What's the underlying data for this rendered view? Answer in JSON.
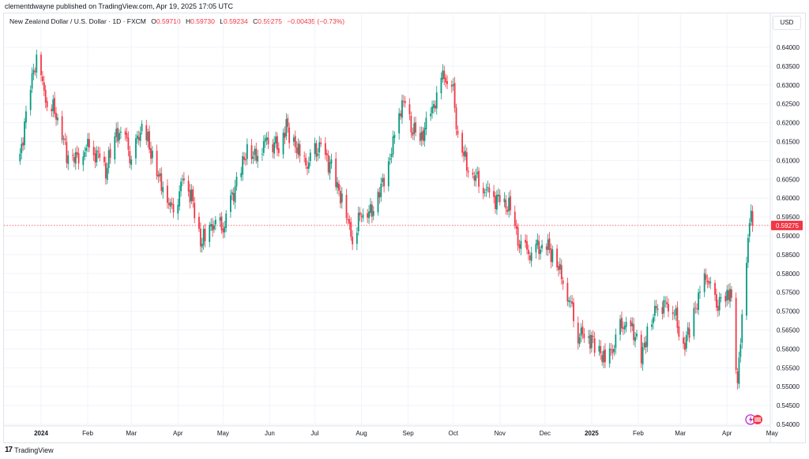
{
  "header": {
    "published": "clementdwayne published on TradingView.com, Apr 19, 2025 17:05 UTC"
  },
  "legend": {
    "symbol": "New Zealand Dollar / U.S. Dollar · 1D · FXCM",
    "o_key": "O",
    "o_val": "0.59710",
    "h_key": "H",
    "h_val": "0.59730",
    "l_key": "L",
    "l_val": "0.59234",
    "c_key": "C",
    "c_val": "0.59275",
    "change": "−0.00435 (−0.73%)"
  },
  "currency_label": "USD",
  "footer": {
    "logo": "17",
    "brand": "TradingView"
  },
  "colors": {
    "up": "#089981",
    "down": "#f23645",
    "grid": "#f0f3fa",
    "last_price_bg": "#f23645"
  },
  "chart_data": {
    "type": "candlestick",
    "title": "New Zealand Dollar / U.S. Dollar",
    "ylim": [
      0.54,
      0.64
    ],
    "y_ticks": [
      "0.64000",
      "0.63500",
      "0.63000",
      "0.62500",
      "0.62000",
      "0.61500",
      "0.61000",
      "0.60500",
      "0.60000",
      "0.59500",
      "0.59000",
      "0.58500",
      "0.58000",
      "0.57500",
      "0.57000",
      "0.56500",
      "0.56000",
      "0.55500",
      "0.55000",
      "0.54500",
      "0.54000"
    ],
    "x_ticks": [
      {
        "label": "2024",
        "bold": true,
        "day": 0
      },
      {
        "label": "Feb",
        "bold": false,
        "day": 31
      },
      {
        "label": "Mar",
        "bold": false,
        "day": 60
      },
      {
        "label": "Apr",
        "bold": false,
        "day": 91
      },
      {
        "label": "May",
        "bold": false,
        "day": 121
      },
      {
        "label": "Jun",
        "bold": false,
        "day": 152
      },
      {
        "label": "Jul",
        "bold": false,
        "day": 182
      },
      {
        "label": "Aug",
        "bold": false,
        "day": 213
      },
      {
        "label": "Sep",
        "bold": false,
        "day": 244
      },
      {
        "label": "Oct",
        "bold": false,
        "day": 274
      },
      {
        "label": "Nov",
        "bold": false,
        "day": 305
      },
      {
        "label": "Dec",
        "bold": false,
        "day": 335
      },
      {
        "label": "2025",
        "bold": true,
        "day": 366
      },
      {
        "label": "Feb",
        "bold": false,
        "day": 397
      },
      {
        "label": "Mar",
        "bold": false,
        "day": 425
      },
      {
        "label": "Apr",
        "bold": false,
        "day": 456
      },
      {
        "label": "May",
        "bold": false,
        "day": 486
      }
    ],
    "last_price": "0.59275",
    "anchors": [
      [
        "2023-12-18",
        0.611
      ],
      [
        "2023-12-27",
        0.634
      ],
      [
        "2023-12-29",
        0.636
      ],
      [
        "2024-01-05",
        0.625
      ],
      [
        "2024-01-12",
        0.622
      ],
      [
        "2024-01-18",
        0.612
      ],
      [
        "2024-01-25",
        0.611
      ],
      [
        "2024-02-01",
        0.614
      ],
      [
        "2024-02-08",
        0.611
      ],
      [
        "2024-02-13",
        0.607
      ],
      [
        "2024-02-20",
        0.617
      ],
      [
        "2024-02-27",
        0.615
      ],
      [
        "2024-03-01",
        0.609
      ],
      [
        "2024-03-08",
        0.62
      ],
      [
        "2024-03-13",
        0.614
      ],
      [
        "2024-03-19",
        0.606
      ],
      [
        "2024-03-28",
        0.597
      ],
      [
        "2024-04-05",
        0.605
      ],
      [
        "2024-04-10",
        0.6
      ],
      [
        "2024-04-16",
        0.588
      ],
      [
        "2024-04-19",
        0.59
      ],
      [
        "2024-04-24",
        0.593
      ],
      [
        "2024-05-01",
        0.592
      ],
      [
        "2024-05-08",
        0.602
      ],
      [
        "2024-05-16",
        0.612
      ],
      [
        "2024-05-23",
        0.611
      ],
      [
        "2024-05-31",
        0.616
      ],
      [
        "2024-06-07",
        0.613
      ],
      [
        "2024-06-12",
        0.619
      ],
      [
        "2024-06-18",
        0.614
      ],
      [
        "2024-06-26",
        0.609
      ],
      [
        "2024-07-04",
        0.614
      ],
      [
        "2024-07-12",
        0.608
      ],
      [
        "2024-07-19",
        0.599
      ],
      [
        "2024-07-26",
        0.589
      ],
      [
        "2024-08-02",
        0.597
      ],
      [
        "2024-08-07",
        0.596
      ],
      [
        "2024-08-14",
        0.603
      ],
      [
        "2024-08-21",
        0.613
      ],
      [
        "2024-08-28",
        0.626
      ],
      [
        "2024-09-04",
        0.618
      ],
      [
        "2024-09-09",
        0.615
      ],
      [
        "2024-09-17",
        0.623
      ],
      [
        "2024-09-24",
        0.632
      ],
      [
        "2024-09-30",
        0.631
      ],
      [
        "2024-10-04",
        0.617
      ],
      [
        "2024-10-11",
        0.608
      ],
      [
        "2024-10-18",
        0.605
      ],
      [
        "2024-10-25",
        0.601
      ],
      [
        "2024-11-01",
        0.599
      ],
      [
        "2024-11-08",
        0.597
      ],
      [
        "2024-11-14",
        0.587
      ],
      [
        "2024-11-22",
        0.585
      ],
      [
        "2024-11-26",
        0.587
      ],
      [
        "2024-12-02",
        0.588
      ],
      [
        "2024-12-10",
        0.582
      ],
      [
        "2024-12-18",
        0.572
      ],
      [
        "2024-12-23",
        0.564
      ],
      [
        "2025-01-01",
        0.562
      ],
      [
        "2025-01-10",
        0.557
      ],
      [
        "2025-01-15",
        0.56
      ],
      [
        "2025-01-22",
        0.567
      ],
      [
        "2025-01-29",
        0.565
      ],
      [
        "2025-02-03",
        0.558
      ],
      [
        "2025-02-07",
        0.564
      ],
      [
        "2025-02-14",
        0.572
      ],
      [
        "2025-02-24",
        0.571
      ],
      [
        "2025-03-03",
        0.56
      ],
      [
        "2025-03-10",
        0.57
      ],
      [
        "2025-03-18",
        0.58
      ],
      [
        "2025-03-24",
        0.572
      ],
      [
        "2025-03-31",
        0.573
      ],
      [
        "2025-04-03",
        0.576
      ],
      [
        "2025-04-08",
        0.55
      ],
      [
        "2025-04-10",
        0.563
      ],
      [
        "2025-04-15",
        0.588
      ],
      [
        "2025-04-17",
        0.597
      ],
      [
        "2025-04-18",
        0.5928
      ]
    ]
  }
}
